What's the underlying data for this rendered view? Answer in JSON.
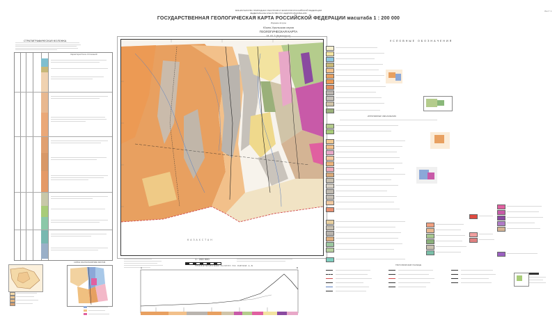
{
  "header": {
    "ministry": "МИНИСТЕРСТВО ПРИРОДНЫХ РЕСУРСОВ И ЭКОЛОГИИ РОССИЙСКОЙ ФЕДЕРАЦИИ",
    "agency": "ФЕДЕРАЛЬНОЕ АГЕНТСТВО ПО НЕДРОПОЛЬЗОВАНИЮ",
    "title": "ГОСУДАРСТВЕННАЯ ГЕОЛОГИЧЕСКАЯ КАРТА РОССИЙСКОЙ ФЕДЕРАЦИИ масштаба 1 : 200 000",
    "edition": "Издание второе",
    "series": "Южно-Уральская серия",
    "map_type": "ГЕОЛОГИЧЕСКАЯ КАРТА",
    "sheet": "М-40-3 (Кувандык)",
    "sheet_no": "Лист 1"
  },
  "left_panel": {
    "title": "СТРАТИГРАФИЧЕСКАЯ КОЛОНКА",
    "column_header": "Характеристика отложений"
  },
  "map": {
    "country_label": "КАЗАХСТАН",
    "scale_text": "1 : 200 000",
    "colors": {
      "orange": "#e8a060",
      "light_orange": "#f2c08a",
      "yellow": "#f3e3a0",
      "grey": "#b9b4ae",
      "green": "#b4cc8c",
      "magenta": "#c85aa8",
      "pink": "#e8a8c8",
      "background": "#f7f3ec"
    }
  },
  "section": {
    "title": "ГЕОЛОГИЧЕСКИЙ РАЗРЕЗ ПО ЛИНИИ А-Б",
    "label_a": "А",
    "label_b": "Б"
  },
  "legend": {
    "title": "УСЛОВНЫЕ ОБОЗНАЧЕНИЯ",
    "subtitle_1": "ИНТРУЗИВНЫЕ ОБРАЗОВАНИЯ",
    "subtitle_2": "ТЕКТОНИЧЕСКИЕ ГРАНИЦЫ"
  },
  "small_map": {
    "title": "СХЕМА РАСПОЛОЖЕНИЯ ЛИСТОВ"
  }
}
